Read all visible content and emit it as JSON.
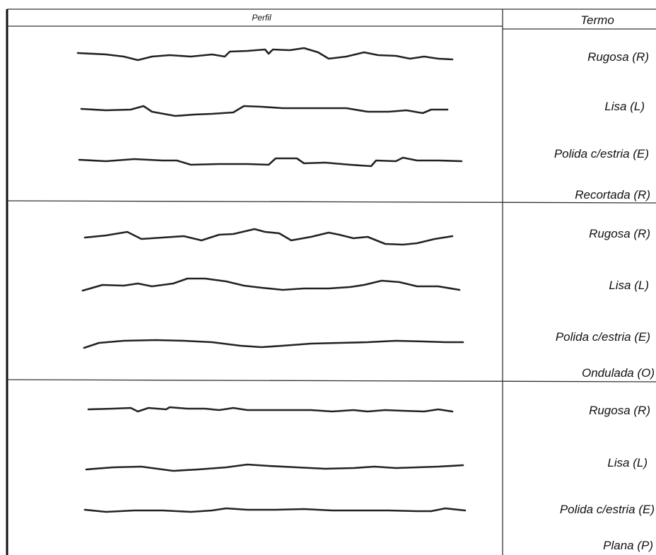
{
  "header": {
    "profile": "Perfil",
    "term": "Termo"
  },
  "groups": [
    {
      "rows": [
        "Rugosa (R)",
        "Lisa (L)",
        "Polida c/estria (E)"
      ],
      "label": "Recortada (R)"
    },
    {
      "rows": [
        "Rugosa (R)",
        "Lisa (L)",
        "Polida c/estria (E)"
      ],
      "label": "Ondulada (O)"
    },
    {
      "rows": [
        "Rugosa (R)",
        "Lisa (L)",
        "Polida c/estria (E)"
      ],
      "label": "Plana (P)"
    }
  ]
}
